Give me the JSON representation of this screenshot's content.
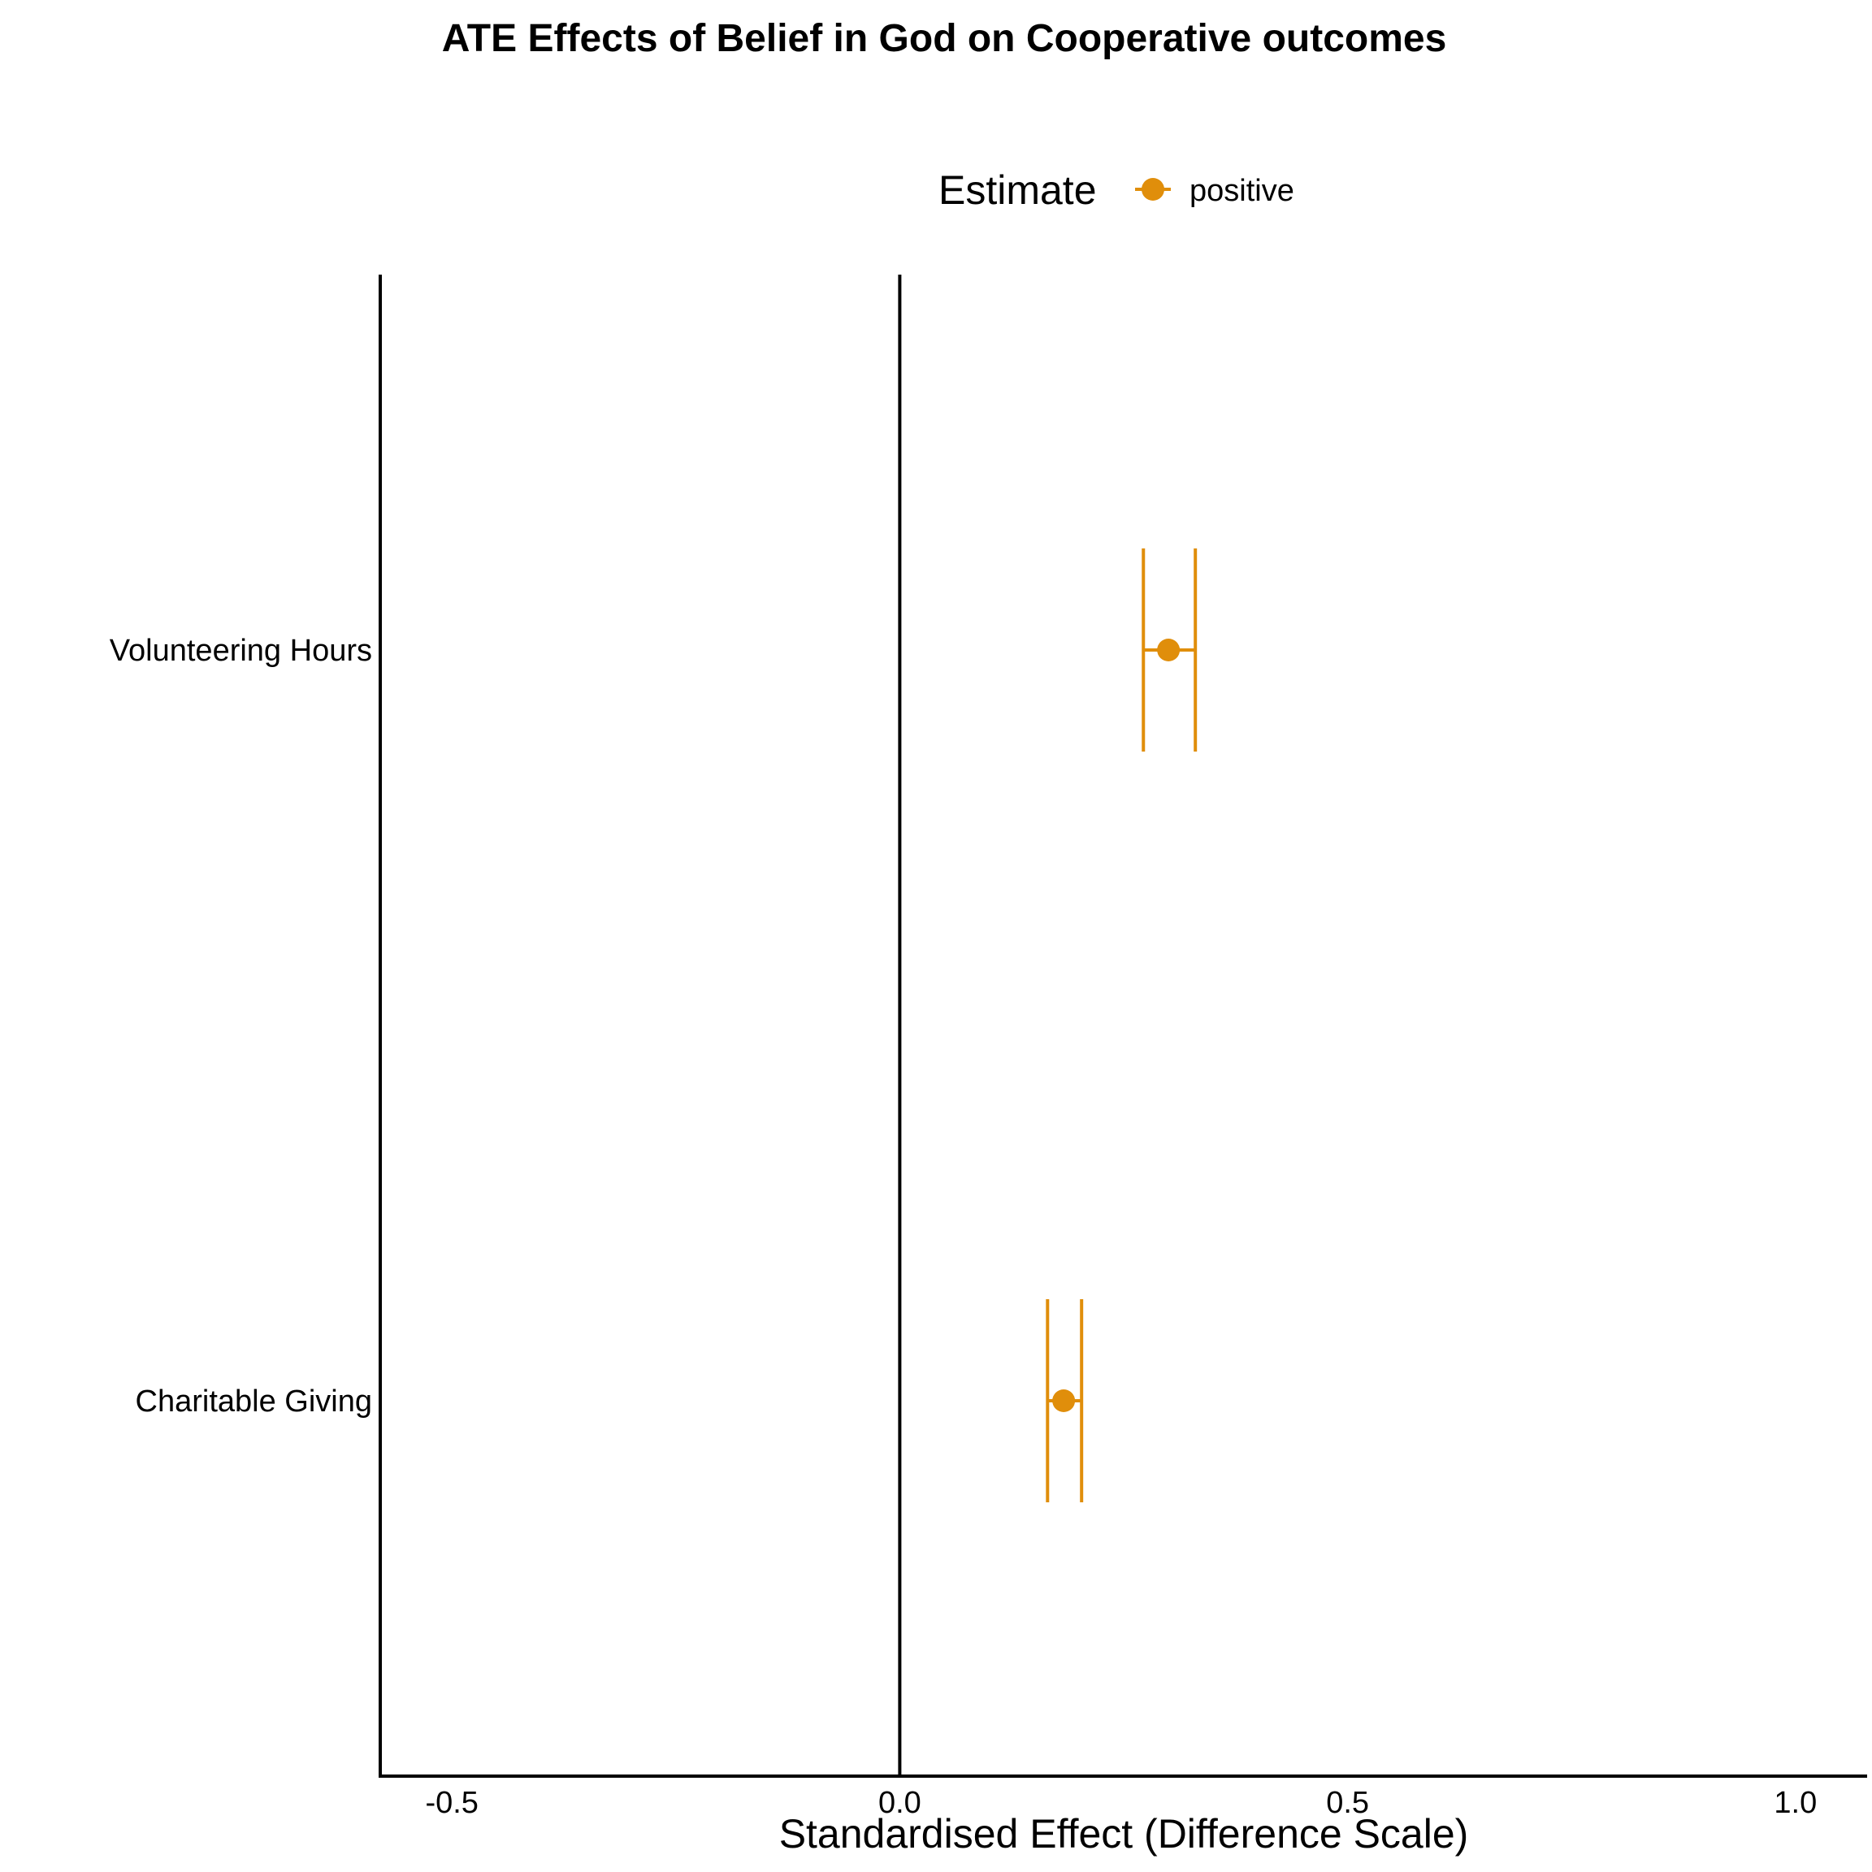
{
  "chart_data": {
    "type": "scatter",
    "title": "ATE Effects of Belief in God on Cooperative outcomes",
    "xlabel": "Standardised Effect (Difference Scale)",
    "ylabel": "",
    "xlim": [
      -0.58,
      1.08
    ],
    "x_ticks": [
      "-0.5",
      "0.0",
      "0.5",
      "1.0"
    ],
    "x_tick_values": [
      -0.5,
      0.0,
      0.5,
      1.0
    ],
    "reference_line_x": 0.0,
    "categories": [
      "Volunteering Hours",
      "Charitable Giving"
    ],
    "legend": {
      "title": "Estimate",
      "placement": "top",
      "entries": [
        "positive"
      ]
    },
    "series": [
      {
        "name": "positive",
        "color": "#E08E0B",
        "points": [
          {
            "category": "Volunteering Hours",
            "estimate": 0.3,
            "lower": 0.272,
            "upper": 0.33
          },
          {
            "category": "Charitable Giving",
            "estimate": 0.183,
            "lower": 0.165,
            "upper": 0.203
          }
        ]
      }
    ],
    "grid": false
  }
}
